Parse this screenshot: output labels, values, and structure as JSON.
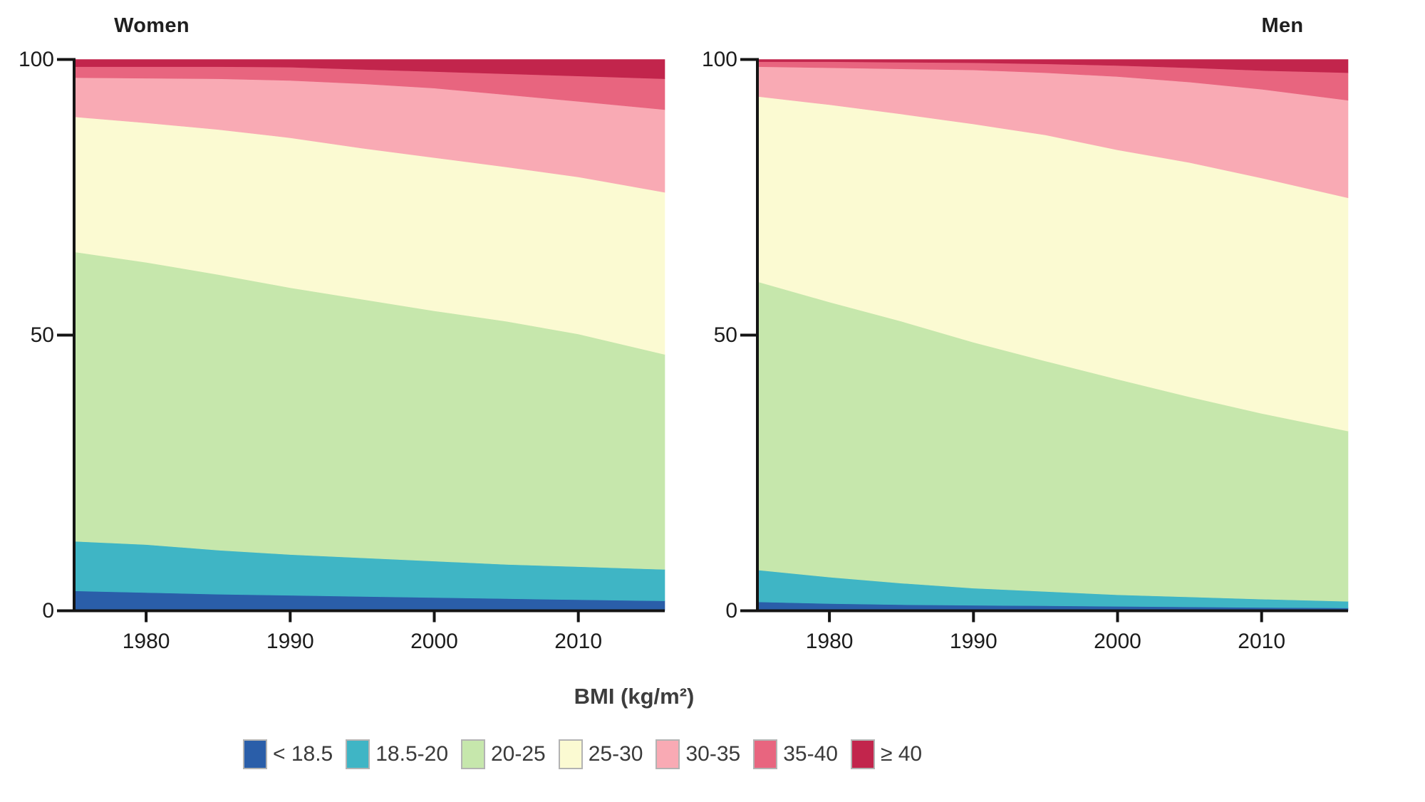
{
  "accent_colors": {
    "axis": "#141414",
    "tick_text": "#1c1c1c",
    "legend_text": "#3a3a3a",
    "swatch_border": "#b3b3b3"
  },
  "legend": {
    "title": "BMI (kg/m²)",
    "items": [
      {
        "label": "< 18.5",
        "color": "#2a5ea9"
      },
      {
        "label": "18.5-20",
        "color": "#3fb5c5"
      },
      {
        "label": "20-25",
        "color": "#c6e7ac"
      },
      {
        "label": "25-30",
        "color": "#fbfad2"
      },
      {
        "label": "30-35",
        "color": "#f9aab4"
      },
      {
        "label": "35-40",
        "color": "#e8657f"
      },
      {
        "label": "≥ 40",
        "color": "#c2254c"
      }
    ]
  },
  "chart_data": [
    {
      "type": "area",
      "stacked": true,
      "title": "Women",
      "x": [
        1975,
        1980,
        1985,
        1990,
        1995,
        2000,
        2005,
        2010,
        2016
      ],
      "x_ticks": [
        "1980",
        "1990",
        "2000",
        "2010"
      ],
      "y_ticks": [
        "0",
        "50",
        "100"
      ],
      "xlim": [
        1975,
        2016
      ],
      "ylim": [
        0,
        100
      ],
      "legend_position": "bottom",
      "grid": false,
      "series": [
        {
          "name": "< 18.5",
          "color": "#2a5ea9",
          "values": [
            3.6,
            3.3,
            3.0,
            2.8,
            2.6,
            2.4,
            2.2,
            2.0,
            1.8
          ]
        },
        {
          "name": "18.5-20",
          "color": "#3fb5c5",
          "values": [
            9.0,
            8.7,
            8.0,
            7.4,
            7.0,
            6.6,
            6.2,
            6.0,
            5.7
          ]
        },
        {
          "name": "20-25",
          "color": "#c6e7ac",
          "values": [
            52.5,
            51.2,
            50.0,
            48.4,
            46.9,
            45.4,
            44.1,
            42.2,
            39.0
          ]
        },
        {
          "name": "25-30",
          "color": "#fbfad2",
          "values": [
            24.5,
            25.3,
            26.3,
            27.2,
            27.4,
            27.8,
            28.0,
            28.5,
            29.4
          ]
        },
        {
          "name": "30-35",
          "color": "#f9aab4",
          "values": [
            7.1,
            8.1,
            9.2,
            10.4,
            11.7,
            12.6,
            13.1,
            13.7,
            15.0
          ]
        },
        {
          "name": "35-40",
          "color": "#e8657f",
          "values": [
            2.0,
            2.1,
            2.2,
            2.4,
            2.6,
            3.0,
            3.8,
            4.6,
            5.6
          ]
        },
        {
          "name": "≥ 40",
          "color": "#c2254c",
          "values": [
            1.3,
            1.3,
            1.3,
            1.4,
            1.8,
            2.2,
            2.6,
            3.0,
            3.5
          ]
        }
      ]
    },
    {
      "type": "area",
      "stacked": true,
      "title": "Men",
      "x": [
        1975,
        1980,
        1985,
        1990,
        1995,
        2000,
        2005,
        2010,
        2016
      ],
      "x_ticks": [
        "1980",
        "1990",
        "2000",
        "2010"
      ],
      "y_ticks": [
        "0",
        "50",
        "100"
      ],
      "xlim": [
        1975,
        2016
      ],
      "ylim": [
        0,
        100
      ],
      "legend_position": "bottom",
      "grid": false,
      "series": [
        {
          "name": "< 18.5",
          "color": "#2a5ea9",
          "values": [
            1.6,
            1.3,
            1.1,
            1.0,
            0.9,
            0.8,
            0.7,
            0.6,
            0.5
          ]
        },
        {
          "name": "18.5-20",
          "color": "#3fb5c5",
          "values": [
            5.8,
            4.8,
            3.9,
            3.1,
            2.6,
            2.1,
            1.8,
            1.5,
            1.2
          ]
        },
        {
          "name": "20-25",
          "color": "#c6e7ac",
          "values": [
            52.3,
            49.9,
            47.5,
            44.6,
            41.8,
            39.1,
            36.3,
            33.7,
            30.9
          ]
        },
        {
          "name": "25-30",
          "color": "#fbfad2",
          "values": [
            33.6,
            35.8,
            37.6,
            39.6,
            41.0,
            41.6,
            42.5,
            42.7,
            42.3
          ]
        },
        {
          "name": "30-35",
          "color": "#f9aab4",
          "values": [
            5.4,
            6.7,
            8.2,
            9.8,
            11.3,
            13.3,
            14.6,
            16.1,
            17.7
          ]
        },
        {
          "name": "35-40",
          "color": "#e8657f",
          "values": [
            0.9,
            1.1,
            1.2,
            1.3,
            1.6,
            2.0,
            2.6,
            3.4,
            5.0
          ]
        },
        {
          "name": "≥ 40",
          "color": "#c2254c",
          "values": [
            0.4,
            0.4,
            0.5,
            0.6,
            0.8,
            1.1,
            1.5,
            2.0,
            2.4
          ]
        }
      ]
    }
  ]
}
